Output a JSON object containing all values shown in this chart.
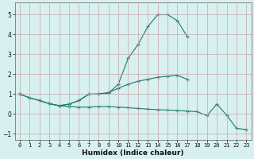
{
  "xlabel": "Humidex (Indice chaleur)",
  "xlim": [
    -0.5,
    23.5
  ],
  "ylim": [
    -1.3,
    5.6
  ],
  "yticks": [
    -1,
    0,
    1,
    2,
    3,
    4,
    5
  ],
  "xticks": [
    0,
    1,
    2,
    3,
    4,
    5,
    6,
    7,
    8,
    9,
    10,
    11,
    12,
    13,
    14,
    15,
    16,
    17,
    18,
    19,
    20,
    21,
    22,
    23
  ],
  "line_color": "#1a7a6e",
  "bg_color": "#d8f0f0",
  "grid_color": "#c8a8a8",
  "line1_y": [
    1.0,
    0.82,
    0.68,
    0.52,
    0.42,
    0.5,
    0.68,
    1.0,
    1.0,
    1.05,
    1.5,
    2.8,
    3.5,
    4.4,
    5.0,
    5.0,
    4.7,
    3.9,
    null,
    null,
    null,
    null,
    null,
    null
  ],
  "line2_y": [
    1.0,
    null,
    null,
    null,
    null,
    null,
    null,
    null,
    null,
    null,
    null,
    null,
    null,
    null,
    null,
    null,
    null,
    null,
    null,
    null,
    null,
    null,
    null,
    null
  ],
  "line3_y": [
    1.0,
    null,
    null,
    null,
    null,
    null,
    null,
    null,
    null,
    null,
    null,
    null,
    null,
    null,
    null,
    null,
    null,
    1.75,
    null,
    null,
    null,
    null,
    null,
    null
  ],
  "line_flat_y": [
    1.0,
    0.82,
    0.68,
    0.52,
    0.42,
    0.38,
    0.35,
    0.35,
    0.38,
    0.38,
    0.35,
    0.32,
    0.28,
    0.25,
    0.22,
    0.2,
    0.18,
    0.15,
    0.12,
    -0.08,
    0.5,
    -0.05,
    -0.72,
    -0.78
  ],
  "line_mid_y": [
    1.0,
    null,
    null,
    0.52,
    0.42,
    0.5,
    0.68,
    1.0,
    1.02,
    1.08,
    1.3,
    1.5,
    1.65,
    1.75,
    1.85,
    1.9,
    1.95,
    1.75,
    null,
    null,
    null,
    null,
    null,
    null
  ]
}
